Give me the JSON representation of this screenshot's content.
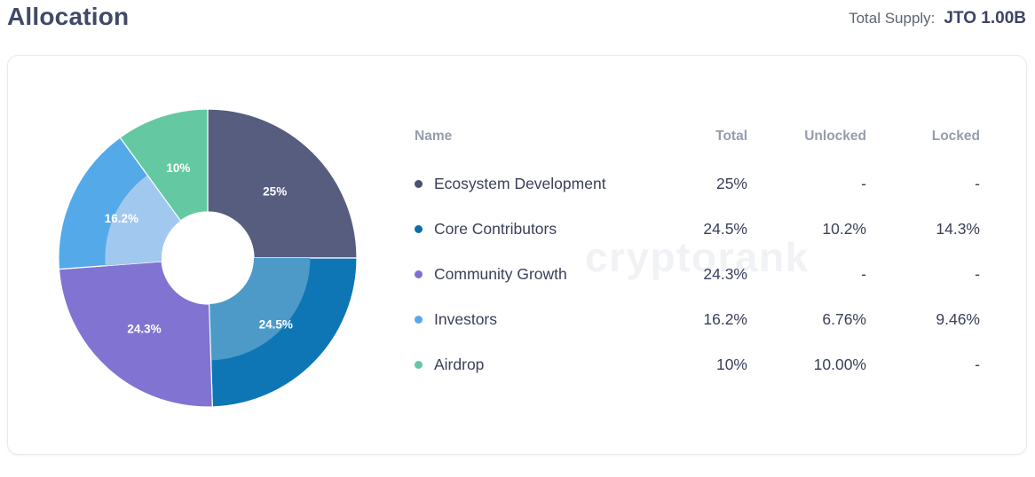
{
  "header": {
    "title": "Allocation",
    "total_supply_label": "Total Supply:",
    "total_supply_value": "JTO 1.00B"
  },
  "watermark": "cryptorank",
  "table": {
    "headers": {
      "name": "Name",
      "total": "Total",
      "unlocked": "Unlocked",
      "locked": "Locked"
    },
    "rows": [
      {
        "name": "Ecosystem Development",
        "total": "25%",
        "unlocked": "-",
        "locked": "-",
        "bullet_color": "#4b516f"
      },
      {
        "name": "Core Contributors",
        "total": "24.5%",
        "unlocked": "10.2%",
        "locked": "14.3%",
        "bullet_color": "#0b6fa9"
      },
      {
        "name": "Community Growth",
        "total": "24.3%",
        "unlocked": "-",
        "locked": "-",
        "bullet_color": "#7f70d0"
      },
      {
        "name": "Investors",
        "total": "16.2%",
        "unlocked": "6.76%",
        "locked": "9.46%",
        "bullet_color": "#57a8ea"
      },
      {
        "name": "Airdrop",
        "total": "10%",
        "unlocked": "10.00%",
        "locked": "-",
        "bullet_color": "#63c8a1"
      }
    ]
  },
  "chart_data": {
    "type": "pie",
    "donut": true,
    "title": "Allocation",
    "start_angle_deg": 0,
    "clockwise": true,
    "categories": [
      "Ecosystem Development",
      "Core Contributors",
      "Community Growth",
      "Investors",
      "Airdrop"
    ],
    "values": [
      25,
      24.5,
      24.3,
      16.2,
      10
    ],
    "slice_labels": [
      "25%",
      "24.5%",
      "24.3%",
      "16.2%",
      "10%"
    ],
    "colors": [
      "#575d7f",
      "#0e76b4",
      "#8173d1",
      "#54a9e9",
      "#64c9a2"
    ],
    "unlocked_values": [
      null,
      10.2,
      null,
      6.76,
      10
    ],
    "unlocked_overlay_colors": [
      null,
      "#4d9ac8",
      null,
      "#a1c9f0",
      null
    ],
    "label_text_color": "#ffffff",
    "legend_position": "right-table"
  }
}
